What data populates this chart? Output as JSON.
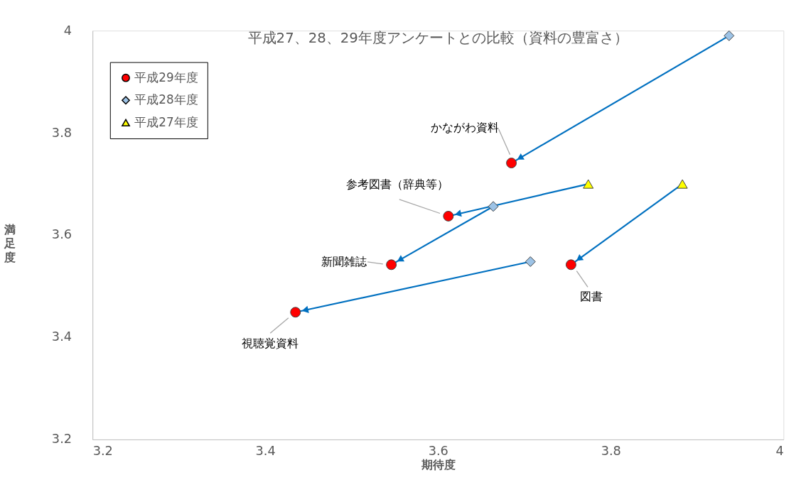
{
  "chart_data": {
    "type": "scatter",
    "title": "平成27、28、29年度アンケートとの比較（資料の豊富さ）",
    "xlabel": "期待度",
    "ylabel": "満足度",
    "xlim": [
      3.2,
      4
    ],
    "xticks": [
      3.2,
      3.4,
      3.6,
      3.8,
      4
    ],
    "ylim": [
      3.2,
      4
    ],
    "yticks": [
      3.2,
      3.4,
      3.6,
      3.8,
      4
    ],
    "grid": false,
    "legend": "top left",
    "series": [
      {
        "name": "平成29年度",
        "type": "scatter",
        "marker": "circle",
        "color": "#ff0000",
        "x": [
          3.685,
          3.612,
          3.546,
          3.435,
          3.754
        ],
        "values": [
          3.741,
          3.637,
          3.542,
          3.449,
          3.542
        ]
      },
      {
        "name": "平成28年度",
        "type": "scatter",
        "marker": "diamond",
        "color": "#9dc3e6",
        "x": [
          3.937,
          3.664,
          3.707
        ],
        "values": [
          3.99,
          3.656,
          3.548
        ]
      },
      {
        "name": "平成27年度",
        "type": "scatter",
        "marker": "triangle",
        "color": "#ffff00",
        "x": [
          3.774,
          3.883
        ],
        "values": [
          3.7,
          3.7
        ]
      },
      {
        "type": "line",
        "color": "#0070c0",
        "x": [
          3.937,
          3.685
        ],
        "values": [
          3.99,
          3.741
        ]
      },
      {
        "type": "line",
        "color": "#0070c0",
        "x": [
          3.774,
          3.612
        ],
        "values": [
          3.7,
          3.637
        ]
      },
      {
        "type": "line",
        "color": "#0070c0",
        "x": [
          3.664,
          3.546
        ],
        "values": [
          3.656,
          3.542
        ]
      },
      {
        "type": "line",
        "color": "#0070c0",
        "x": [
          3.707,
          3.435
        ],
        "values": [
          3.548,
          3.449
        ]
      },
      {
        "type": "line",
        "color": "#0070c0",
        "x": [
          3.883,
          3.754
        ],
        "values": [
          3.7,
          3.542
        ]
      }
    ],
    "annotations": [
      {
        "text": "かながわ資料",
        "x": 3.685,
        "y": 3.741
      },
      {
        "text": "参考図書（辞典等）",
        "x": 3.612,
        "y": 3.637
      },
      {
        "text": "新聞雑誌",
        "x": 3.546,
        "y": 3.542
      },
      {
        "text": "視聴覚資料",
        "x": 3.435,
        "y": 3.449
      },
      {
        "text": "図書",
        "x": 3.754,
        "y": 3.542
      }
    ]
  }
}
